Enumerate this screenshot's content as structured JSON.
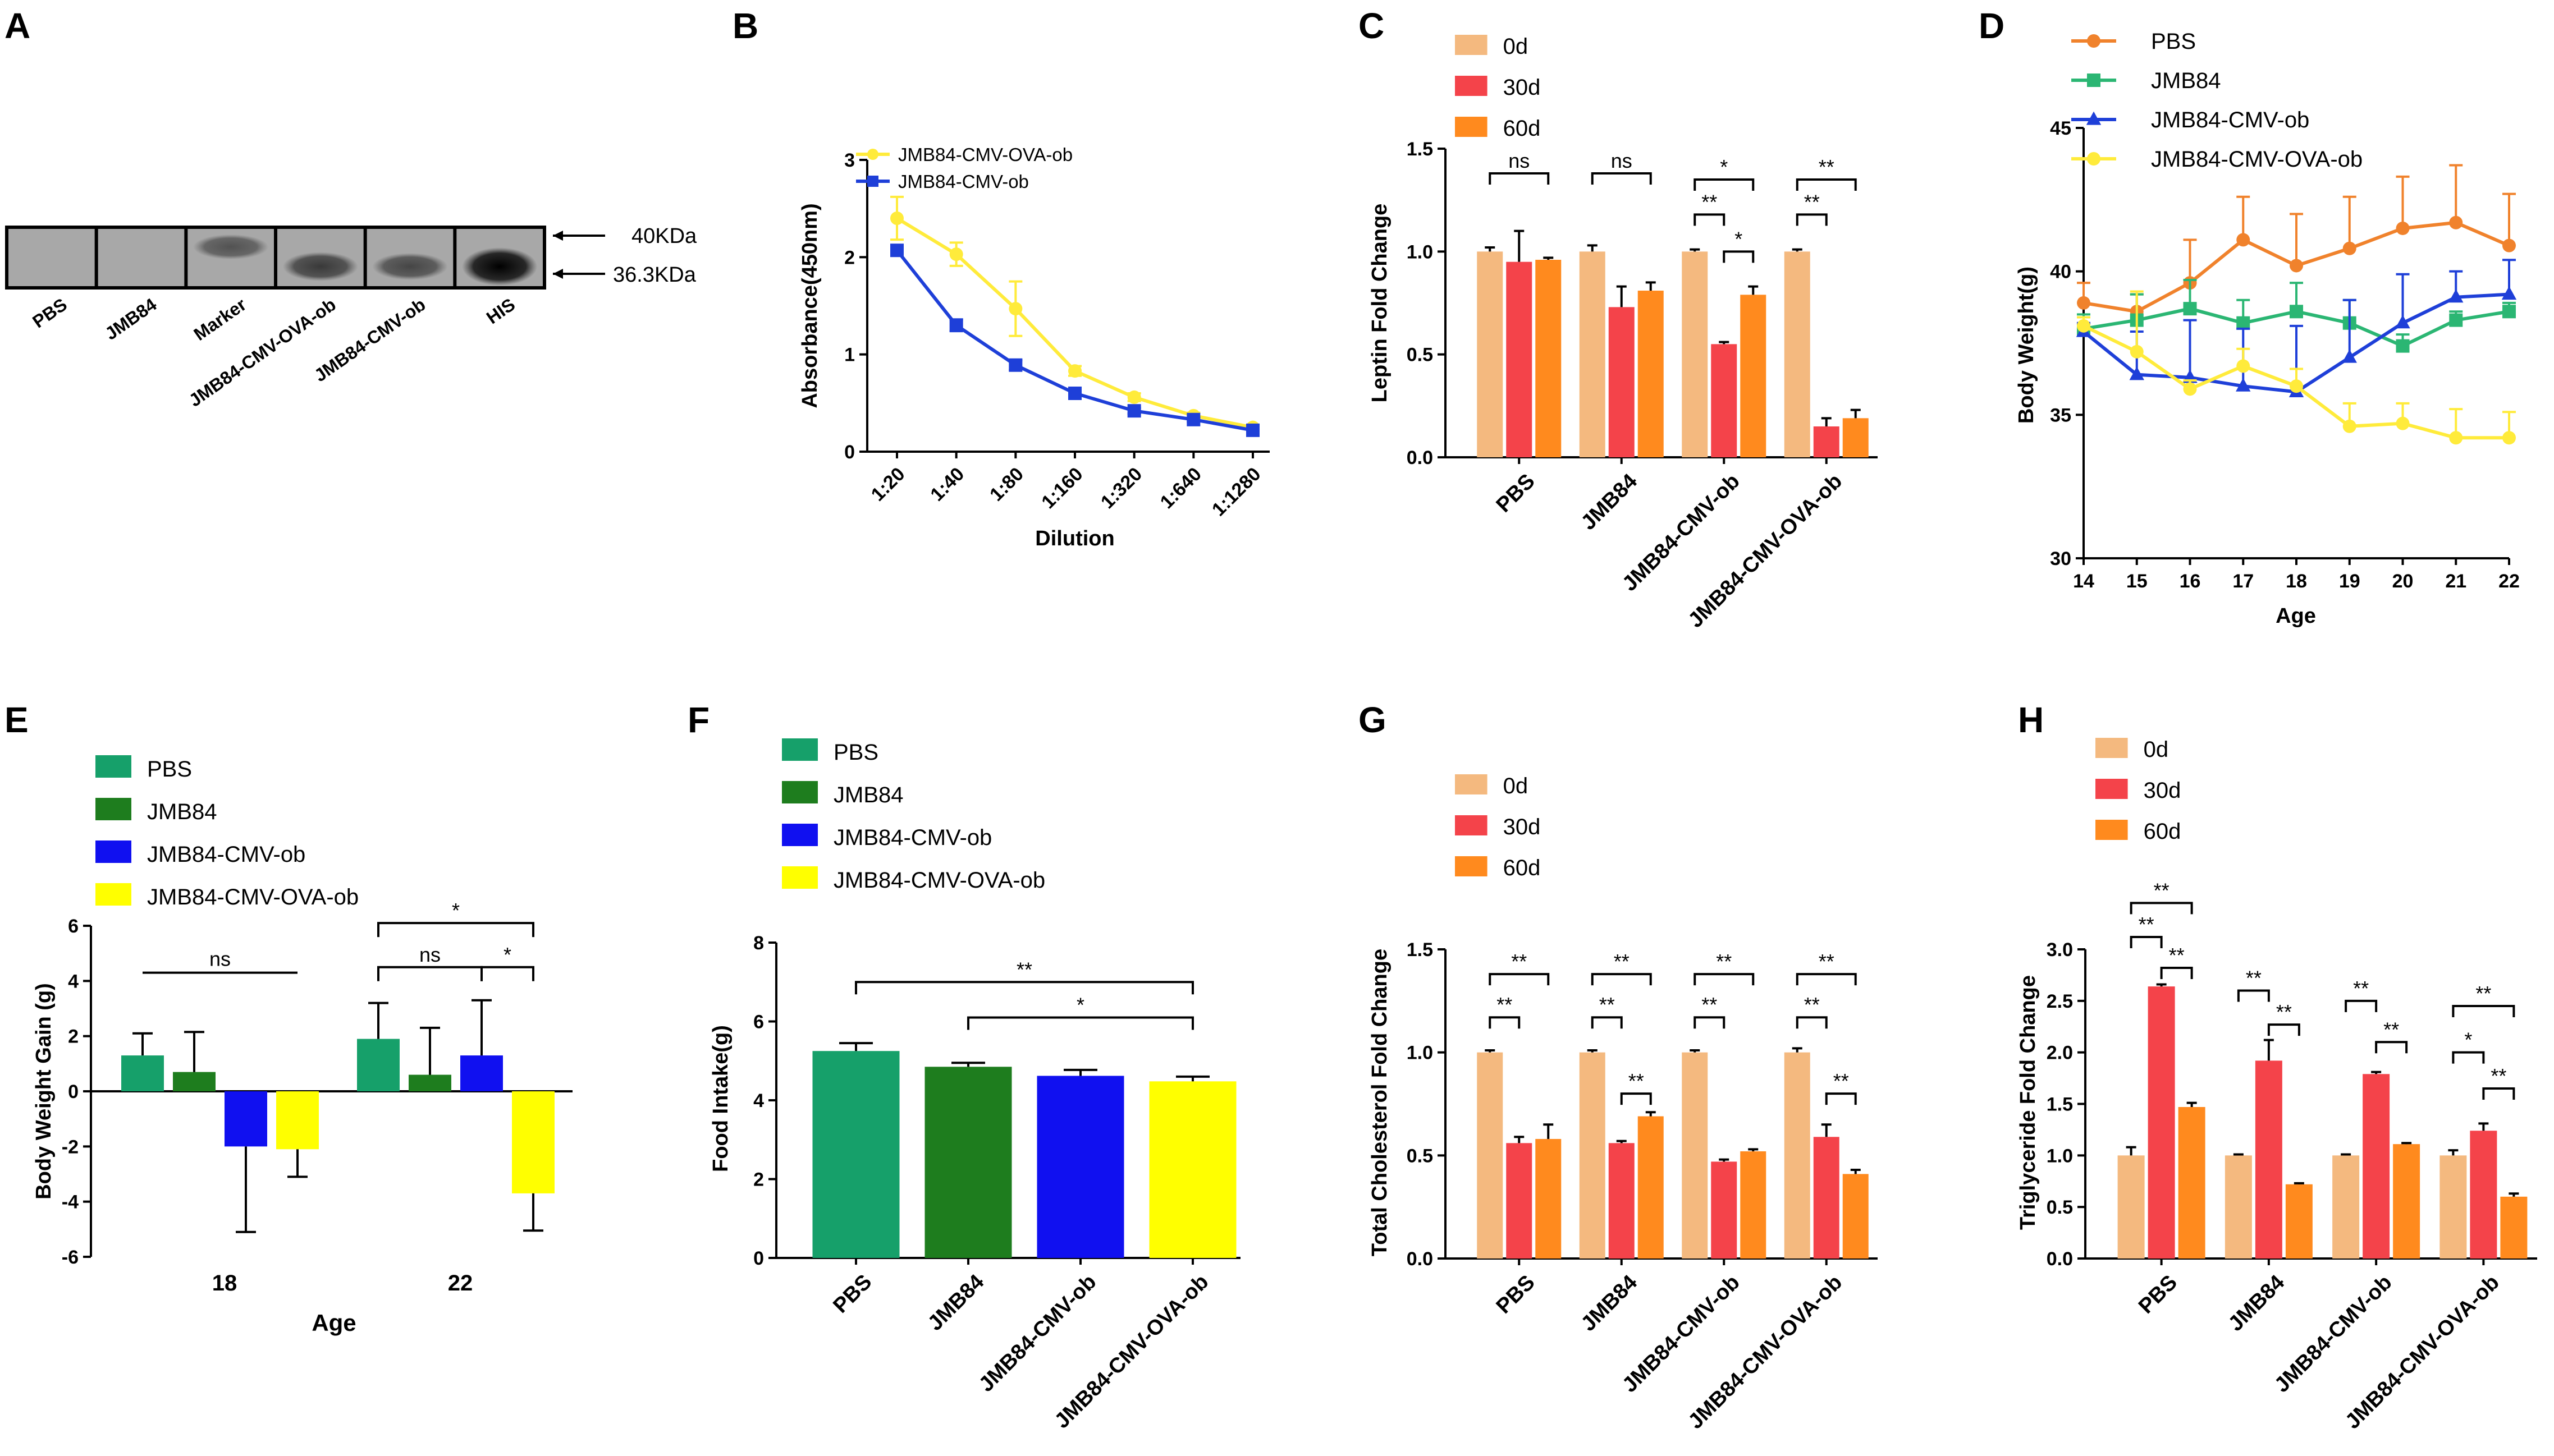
{
  "figure": {
    "panel_labels": [
      "A",
      "B",
      "C",
      "D",
      "E",
      "F",
      "G",
      "H"
    ]
  },
  "chart_data": [
    {
      "panel": "A",
      "type": "western_blot",
      "lanes": [
        "PBS",
        "JMB84",
        "Marker",
        "JMB84-CMV-OVA-ob",
        "JMB84-CMV-ob",
        "HIS"
      ],
      "markers": [
        "40KDa",
        "36.3KDa"
      ],
      "band_intensity": [
        0.0,
        0.0,
        0.35,
        0.55,
        0.45,
        1.0
      ]
    },
    {
      "panel": "B",
      "type": "line",
      "title": "",
      "xlabel": "Dilution",
      "ylabel": "Absorbance(450nm)",
      "categories": [
        "1:20",
        "1:40",
        "1:80",
        "1:160",
        "1:320",
        "1:640",
        "1:1280"
      ],
      "ylim": [
        0,
        3
      ],
      "yticks": [
        0,
        1,
        2,
        3
      ],
      "series": [
        {
          "name": "JMB84-CMV-OVA-ob",
          "color": "#FFEB3B",
          "marker": "circle",
          "values": [
            2.4,
            2.03,
            1.47,
            0.83,
            0.56,
            0.37,
            0.25
          ],
          "err": [
            0.22,
            0.12,
            0.28,
            0.05,
            0.04,
            0.03,
            0.02
          ]
        },
        {
          "name": "JMB84-CMV-ob",
          "color": "#1E3FD8",
          "marker": "square",
          "values": [
            2.07,
            1.3,
            0.89,
            0.6,
            0.42,
            0.33,
            0.22
          ],
          "err": [
            0.05,
            0.06,
            0.05,
            0.04,
            0.03,
            0.02,
            0.02
          ]
        }
      ]
    },
    {
      "panel": "C",
      "type": "bar",
      "xlabel": "",
      "ylabel": "Leptin Fold Change",
      "categories": [
        "PBS",
        "JMB84",
        "JMB84-CMV-ob",
        "JMB84-CMV-OVA-ob"
      ],
      "ylim": [
        0,
        1.5
      ],
      "yticks": [
        "0.0",
        "0.5",
        "1.0",
        "1.5"
      ],
      "series": [
        {
          "name": "0d",
          "color": "#F4B97F",
          "values": [
            1.0,
            1.0,
            1.0,
            1.0
          ],
          "err": [
            0.02,
            0.03,
            0.01,
            0.01
          ]
        },
        {
          "name": "30d",
          "color": "#F4434A",
          "values": [
            0.95,
            0.73,
            0.55,
            0.15
          ],
          "err": [
            0.15,
            0.1,
            0.01,
            0.04
          ]
        },
        {
          "name": "60d",
          "color": "#FF8A1E",
          "values": [
            0.96,
            0.81,
            0.79,
            0.19
          ],
          "err": [
            0.01,
            0.04,
            0.04,
            0.04
          ]
        }
      ],
      "annotations": [
        {
          "group": 0,
          "from": 0,
          "to": 2,
          "level": 1.38,
          "text": "ns"
        },
        {
          "group": 1,
          "from": 0,
          "to": 2,
          "level": 1.38,
          "text": "ns"
        },
        {
          "group": 2,
          "from": 0,
          "to": 2,
          "level": 1.35,
          "text": "*"
        },
        {
          "group": 2,
          "from": 0,
          "to": 1,
          "level": 1.18,
          "text": "**"
        },
        {
          "group": 2,
          "from": 1,
          "to": 2,
          "level": 1.0,
          "text": "*"
        },
        {
          "group": 3,
          "from": 0,
          "to": 2,
          "level": 1.35,
          "text": "**"
        },
        {
          "group": 3,
          "from": 0,
          "to": 1,
          "level": 1.18,
          "text": "**"
        }
      ]
    },
    {
      "panel": "D",
      "type": "line",
      "xlabel": "Age",
      "ylabel": "Body Weight(g)",
      "x": [
        14,
        15,
        16,
        17,
        18,
        19,
        20,
        21,
        22
      ],
      "ylim": [
        30,
        45
      ],
      "yticks": [
        30,
        35,
        40,
        45
      ],
      "series": [
        {
          "name": "PBS",
          "color": "#F0822C",
          "marker": "circle",
          "values": [
            38.9,
            38.6,
            39.6,
            41.1,
            40.2,
            40.8,
            41.5,
            41.7,
            40.9
          ],
          "err": [
            0.7,
            0.6,
            1.5,
            1.5,
            1.8,
            1.8,
            1.8,
            2.0,
            1.8
          ]
        },
        {
          "name": "JMB84",
          "color": "#2BB673",
          "marker": "square",
          "values": [
            38.0,
            38.3,
            38.7,
            38.2,
            38.6,
            38.2,
            37.4,
            38.3,
            38.6
          ],
          "err": [
            0.5,
            0.9,
            1.0,
            0.8,
            1.0,
            0.8,
            0.4,
            0.3,
            0.3
          ]
        },
        {
          "name": "JMB84-CMV-ob",
          "color": "#1E3FD8",
          "marker": "triangle",
          "values": [
            37.9,
            36.4,
            36.3,
            36.0,
            35.8,
            37.0,
            38.2,
            39.1,
            39.2
          ],
          "err": [
            0.3,
            1.5,
            2.0,
            2.0,
            2.3,
            2.0,
            1.7,
            0.9,
            1.2
          ]
        },
        {
          "name": "JMB84-CMV-OVA-ob",
          "color": "#FFEB3B",
          "marker": "circle",
          "values": [
            38.1,
            37.2,
            35.9,
            36.7,
            36.0,
            34.6,
            34.7,
            34.2,
            34.2
          ],
          "err": [
            0.3,
            2.1,
            0.3,
            0.6,
            0.6,
            0.8,
            0.7,
            1.0,
            0.9
          ]
        }
      ]
    },
    {
      "panel": "E",
      "type": "bar",
      "xlabel": "Age",
      "ylabel": "Body Weight Gain (g)",
      "categories": [
        "18",
        "22"
      ],
      "ylim": [
        -6,
        6
      ],
      "yticks": [
        -6,
        -4,
        -2,
        0,
        2,
        4,
        6
      ],
      "series": [
        {
          "name": "PBS",
          "color": "#16A06A",
          "values": [
            1.3,
            1.9
          ],
          "err": [
            0.8,
            1.3
          ]
        },
        {
          "name": "JMB84",
          "color": "#1E7D1E",
          "values": [
            0.7,
            0.6
          ],
          "err": [
            1.45,
            1.7
          ]
        },
        {
          "name": "JMB84-CMV-ob",
          "color": "#1010F0",
          "values": [
            -2.0,
            1.3
          ],
          "err": [
            3.1,
            2.0
          ]
        },
        {
          "name": "JMB84-CMV-OVA-ob",
          "color": "#FFFF00",
          "values": [
            -2.1,
            -3.7
          ],
          "err": [
            1.0,
            1.35
          ]
        }
      ],
      "annotations": [
        {
          "type": "line",
          "x1": [
            0,
            0
          ],
          "x2": [
            0,
            3
          ],
          "level": 0.0,
          "text": "ns"
        },
        {
          "type": "bracket",
          "group": 1,
          "from": 0,
          "to": 3,
          "level": 6.1,
          "text": "*"
        },
        {
          "type": "bracket",
          "group": 1,
          "from": 0,
          "to": 2,
          "level": 4.5,
          "text": "ns"
        },
        {
          "type": "bracket",
          "group": 1,
          "from": 2,
          "to": 3,
          "level": 4.5,
          "text": "*"
        }
      ]
    },
    {
      "panel": "F",
      "type": "bar",
      "xlabel": "",
      "ylabel": "Food Intake(g)",
      "categories": [
        "PBS",
        "JMB84",
        "JMB84-CMV-ob",
        "JMB84-CMV-OVA-ob"
      ],
      "ylim": [
        0,
        8
      ],
      "yticks": [
        0,
        2,
        4,
        6,
        8
      ],
      "series": [
        {
          "name": "PBS",
          "color": "#16A06A"
        },
        {
          "name": "JMB84",
          "color": "#1E7D1E"
        },
        {
          "name": "JMB84-CMV-ob",
          "color": "#1010F0"
        },
        {
          "name": "JMB84-CMV-OVA-ob",
          "color": "#FFFF00"
        }
      ],
      "values": [
        5.25,
        4.85,
        4.62,
        4.48
      ],
      "err": [
        0.2,
        0.1,
        0.15,
        0.12
      ],
      "annotations": [
        {
          "from": 0,
          "to": 3,
          "level": 7.0,
          "text": "**"
        },
        {
          "from": 1,
          "to": 3,
          "level": 6.1,
          "text": "*"
        }
      ]
    },
    {
      "panel": "G",
      "type": "bar",
      "xlabel": "",
      "ylabel": "Total Cholesterol Fold Change",
      "categories": [
        "PBS",
        "JMB84",
        "JMB84-CMV-ob",
        "JMB84-CMV-OVA-ob"
      ],
      "ylim": [
        0,
        1.5
      ],
      "yticks": [
        "0.0",
        "0.5",
        "1.0",
        "1.5"
      ],
      "series": [
        {
          "name": "0d",
          "color": "#F4B97F",
          "values": [
            1.0,
            1.0,
            1.0,
            1.0
          ],
          "err": [
            0.01,
            0.01,
            0.01,
            0.02
          ]
        },
        {
          "name": "30d",
          "color": "#F4434A",
          "values": [
            0.56,
            0.56,
            0.47,
            0.59
          ],
          "err": [
            0.03,
            0.01,
            0.01,
            0.06
          ]
        },
        {
          "name": "60d",
          "color": "#FF8A1E",
          "values": [
            0.58,
            0.69,
            0.52,
            0.41
          ],
          "err": [
            0.07,
            0.02,
            0.01,
            0.02
          ]
        }
      ],
      "annotations": [
        {
          "group": 0,
          "from": 0,
          "to": 2,
          "level": 1.38,
          "text": "**"
        },
        {
          "group": 0,
          "from": 0,
          "to": 1,
          "level": 1.17,
          "text": "**"
        },
        {
          "group": 1,
          "from": 0,
          "to": 2,
          "level": 1.38,
          "text": "**"
        },
        {
          "group": 1,
          "from": 0,
          "to": 1,
          "level": 1.17,
          "text": "**"
        },
        {
          "group": 1,
          "from": 1,
          "to": 2,
          "level": 0.8,
          "text": "**"
        },
        {
          "group": 2,
          "from": 0,
          "to": 2,
          "level": 1.38,
          "text": "**"
        },
        {
          "group": 2,
          "from": 0,
          "to": 1,
          "level": 1.17,
          "text": "**"
        },
        {
          "group": 3,
          "from": 0,
          "to": 2,
          "level": 1.38,
          "text": "**"
        },
        {
          "group": 3,
          "from": 0,
          "to": 1,
          "level": 1.17,
          "text": "**"
        },
        {
          "group": 3,
          "from": 1,
          "to": 2,
          "level": 0.8,
          "text": "**"
        }
      ]
    },
    {
      "panel": "H",
      "type": "bar",
      "xlabel": "",
      "ylabel": "Triglyceride Fold Change",
      "categories": [
        "PBS",
        "JMB84",
        "JMB84-CMV-ob",
        "JMB84-CMV-OVA-ob"
      ],
      "ylim": [
        0,
        3
      ],
      "yticks": [
        "0.0",
        "0.5",
        "1.0",
        "1.5",
        "2.0",
        "2.5",
        "3.0"
      ],
      "series": [
        {
          "name": "0d",
          "color": "#F4B97F",
          "values": [
            1.0,
            1.0,
            1.0,
            1.0
          ],
          "err": [
            0.08,
            0.01,
            0.01,
            0.05
          ]
        },
        {
          "name": "30d",
          "color": "#F4434A",
          "values": [
            2.64,
            1.92,
            1.79,
            1.24
          ],
          "err": [
            0.02,
            0.2,
            0.02,
            0.07
          ]
        },
        {
          "name": "60d",
          "color": "#FF8A1E",
          "values": [
            1.47,
            0.72,
            1.11,
            0.6
          ],
          "err": [
            0.04,
            0.01,
            0.01,
            0.03
          ]
        }
      ],
      "annotations": [
        {
          "group": 0,
          "from": 0,
          "to": 2,
          "level": 3.45,
          "text": "**"
        },
        {
          "group": 0,
          "from": 0,
          "to": 1,
          "level": 3.12,
          "text": "**"
        },
        {
          "group": 0,
          "from": 1,
          "to": 2,
          "level": 2.82,
          "text": "**"
        },
        {
          "group": 1,
          "from": 0,
          "to": 1,
          "level": 2.6,
          "text": "**"
        },
        {
          "group": 1,
          "from": 1,
          "to": 2,
          "level": 2.27,
          "text": "**"
        },
        {
          "group": 2,
          "from": 0,
          "to": 1,
          "level": 2.5,
          "text": "**"
        },
        {
          "group": 2,
          "from": 1,
          "to": 2,
          "level": 2.1,
          "text": "**"
        },
        {
          "group": 3,
          "from": 0,
          "to": 2,
          "level": 2.45,
          "text": "**"
        },
        {
          "group": 3,
          "from": 0,
          "to": 1,
          "level": 2.0,
          "text": "*"
        },
        {
          "group": 3,
          "from": 1,
          "to": 2,
          "level": 1.65,
          "text": "**"
        }
      ]
    }
  ]
}
